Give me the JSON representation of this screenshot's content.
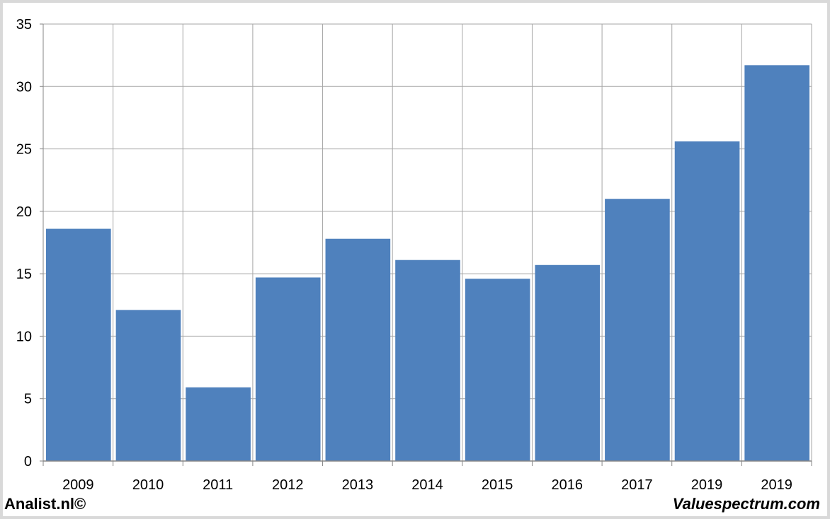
{
  "footer": {
    "left_text": "Analist.nl©",
    "right_text": "Valuespectrum.com"
  },
  "chart_data": {
    "type": "bar",
    "categories": [
      "2009",
      "2010",
      "2011",
      "2012",
      "2013",
      "2014",
      "2015",
      "2016",
      "2017",
      "2019",
      "2019"
    ],
    "values": [
      18.6,
      12.1,
      5.9,
      14.7,
      17.8,
      16.1,
      14.6,
      15.7,
      21.0,
      25.6,
      31.7
    ],
    "title": "",
    "xlabel": "",
    "ylabel": "",
    "ylim": [
      0,
      35
    ],
    "yticks": [
      0,
      5,
      10,
      15,
      20,
      25,
      30,
      35
    ],
    "grid": true,
    "legend": "none",
    "colors": {
      "bar": "#4f81bd",
      "grid": "#a6a6a6",
      "axis": "#868686",
      "background": "#ffffff",
      "border": "#d9d9d9"
    }
  }
}
